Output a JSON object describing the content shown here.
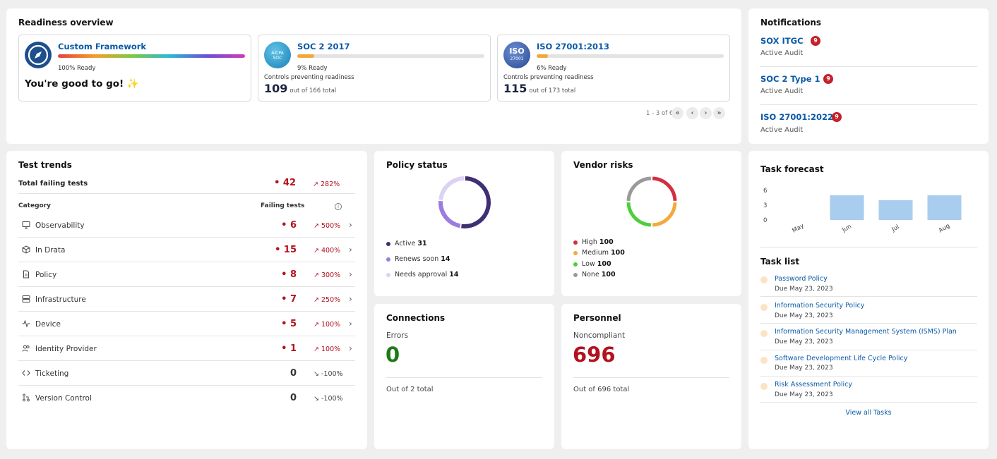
{
  "readiness": {
    "title": "Readiness overview",
    "frameworks": [
      {
        "name": "Custom Framework",
        "ready": "100% Ready",
        "ready_fraction": 1.0,
        "message": "You're good to go! ✨"
      },
      {
        "name": "SOC 2 2017",
        "ready": "9% Ready",
        "ready_fraction": 0.09,
        "controls_label": "Controls preventing readiness",
        "count": "109",
        "total": "out of 166 total",
        "logo_text": "AICPA SOC"
      },
      {
        "name": "ISO 27001:2013",
        "ready": "6% Ready",
        "ready_fraction": 0.06,
        "controls_label": "Controls preventing readiness",
        "count": "115",
        "total": "out of 173 total",
        "logo_text": "ISO",
        "logo_sub": "27001"
      }
    ],
    "pager": {
      "label": "1 - 3 of 6",
      "first": "«",
      "prev": "‹",
      "next": "›",
      "last": "»"
    }
  },
  "notifications": {
    "title": "Notifications",
    "items": [
      {
        "title": "SOX ITGC",
        "badge": "9",
        "status": "Active Audit"
      },
      {
        "title": "SOC 2 Type 1",
        "badge": "9",
        "status": "Active Audit"
      },
      {
        "title": "ISO 27001:2022",
        "badge": "9",
        "status": "Active Audit"
      }
    ]
  },
  "test_trends": {
    "title": "Test trends",
    "total_label": "Total failing tests",
    "total_value": "• 42",
    "total_pct": "↗ 282%",
    "col_category": "Category",
    "col_failing": "Failing tests",
    "info_icon": "info-icon",
    "rows": [
      {
        "label": "Observability",
        "value": "• 6",
        "pct": "↗ 500%",
        "icon": "monitor-icon",
        "trend": "up"
      },
      {
        "label": "In Drata",
        "value": "• 15",
        "pct": "↗ 400%",
        "icon": "cube-icon",
        "trend": "up"
      },
      {
        "label": "Policy",
        "value": "• 8",
        "pct": "↗ 300%",
        "icon": "document-icon",
        "trend": "up"
      },
      {
        "label": "Infrastructure",
        "value": "• 7",
        "pct": "↗ 250%",
        "icon": "server-icon",
        "trend": "up"
      },
      {
        "label": "Device",
        "value": "• 5",
        "pct": "↗ 100%",
        "icon": "activity-icon",
        "trend": "up"
      },
      {
        "label": "Identity Provider",
        "value": "• 1",
        "pct": "↗ 100%",
        "icon": "users-icon",
        "trend": "up"
      },
      {
        "label": "Ticketing",
        "value": "0",
        "pct": "↘ -100%",
        "icon": "code-icon",
        "trend": "down"
      },
      {
        "label": "Version Control",
        "value": "0",
        "pct": "↘ -100%",
        "icon": "git-icon",
        "trend": "down"
      }
    ]
  },
  "policy_status": {
    "title": "Policy status",
    "items": [
      {
        "label": "Active",
        "value": "31",
        "color": "#3f2f73"
      },
      {
        "label": "Renews soon",
        "value": "14",
        "color": "#9b7de0"
      },
      {
        "label": "Needs approval",
        "value": "14",
        "color": "#dcd2f4"
      }
    ]
  },
  "vendor_risks": {
    "title": "Vendor risks",
    "items": [
      {
        "label": "High",
        "value": "100",
        "color": "#d32f3f"
      },
      {
        "label": "Medium",
        "value": "100",
        "color": "#f3a93c"
      },
      {
        "label": "Low",
        "value": "100",
        "color": "#4ccf3a"
      },
      {
        "label": "None",
        "value": "100",
        "color": "#9a9a9a"
      }
    ]
  },
  "connections": {
    "title": "Connections",
    "sub": "Errors",
    "value": "0",
    "footer": "Out of 2 total"
  },
  "personnel": {
    "title": "Personnel",
    "sub": "Noncompliant",
    "value": "696",
    "footer": "Out of 696 total"
  },
  "task_forecast": {
    "title": "Task forecast",
    "chart_data": {
      "type": "bar",
      "categories": [
        "May",
        "Jun",
        "Jul",
        "Aug"
      ],
      "values": [
        0,
        5,
        4,
        5
      ],
      "yticks": [
        "6",
        "3",
        "0"
      ],
      "ylim": [
        0,
        6
      ],
      "color": "#a8cdee"
    }
  },
  "task_list": {
    "title": "Task list",
    "items": [
      {
        "name": "Password Policy",
        "due": "Due May 23, 2023"
      },
      {
        "name": "Information Security Policy",
        "due": "Due May 23, 2023"
      },
      {
        "name": "Information Security Management System (ISMS) Plan",
        "due": "Due May 23, 2023"
      },
      {
        "name": "Software Development Life Cycle Policy",
        "due": "Due May 23, 2023"
      },
      {
        "name": "Risk Assessment Policy",
        "due": "Due May 23, 2023"
      }
    ],
    "view_all": "View all Tasks"
  }
}
